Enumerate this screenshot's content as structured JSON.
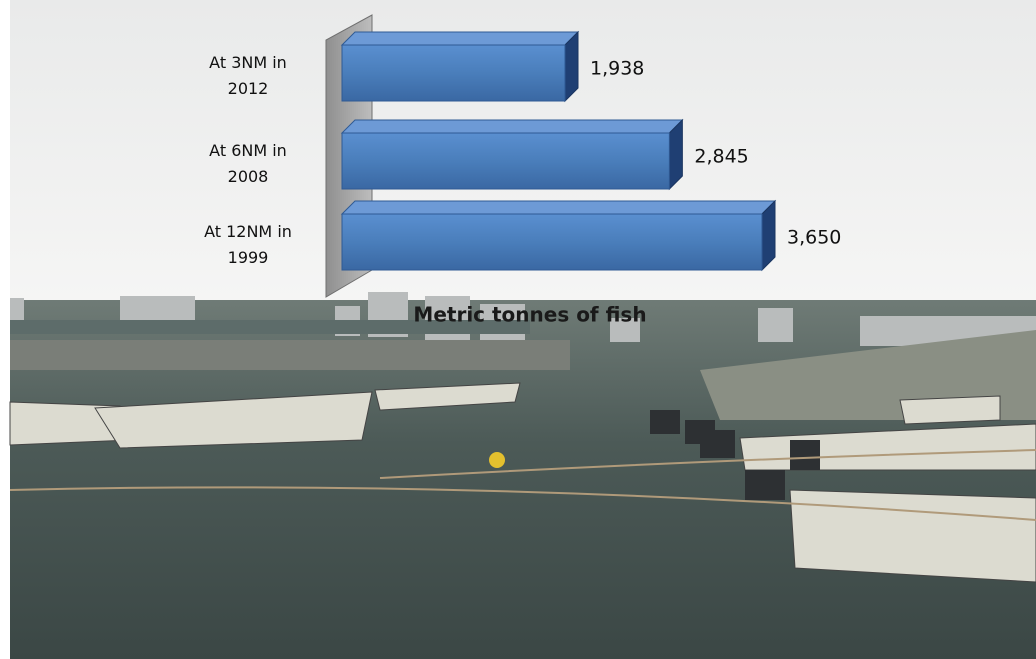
{
  "chart_data": {
    "type": "bar",
    "orientation": "horizontal",
    "x_axis_title": "Metric tonnes of fish",
    "categories": [
      "At 3NM in 2012",
      "At 6NM in 2008",
      "At 12NM in 1999"
    ],
    "values": [
      1938,
      2845,
      3650
    ],
    "value_labels": [
      "1,938",
      "2,845",
      "3,650"
    ],
    "color": "#4a7ebb"
  }
}
